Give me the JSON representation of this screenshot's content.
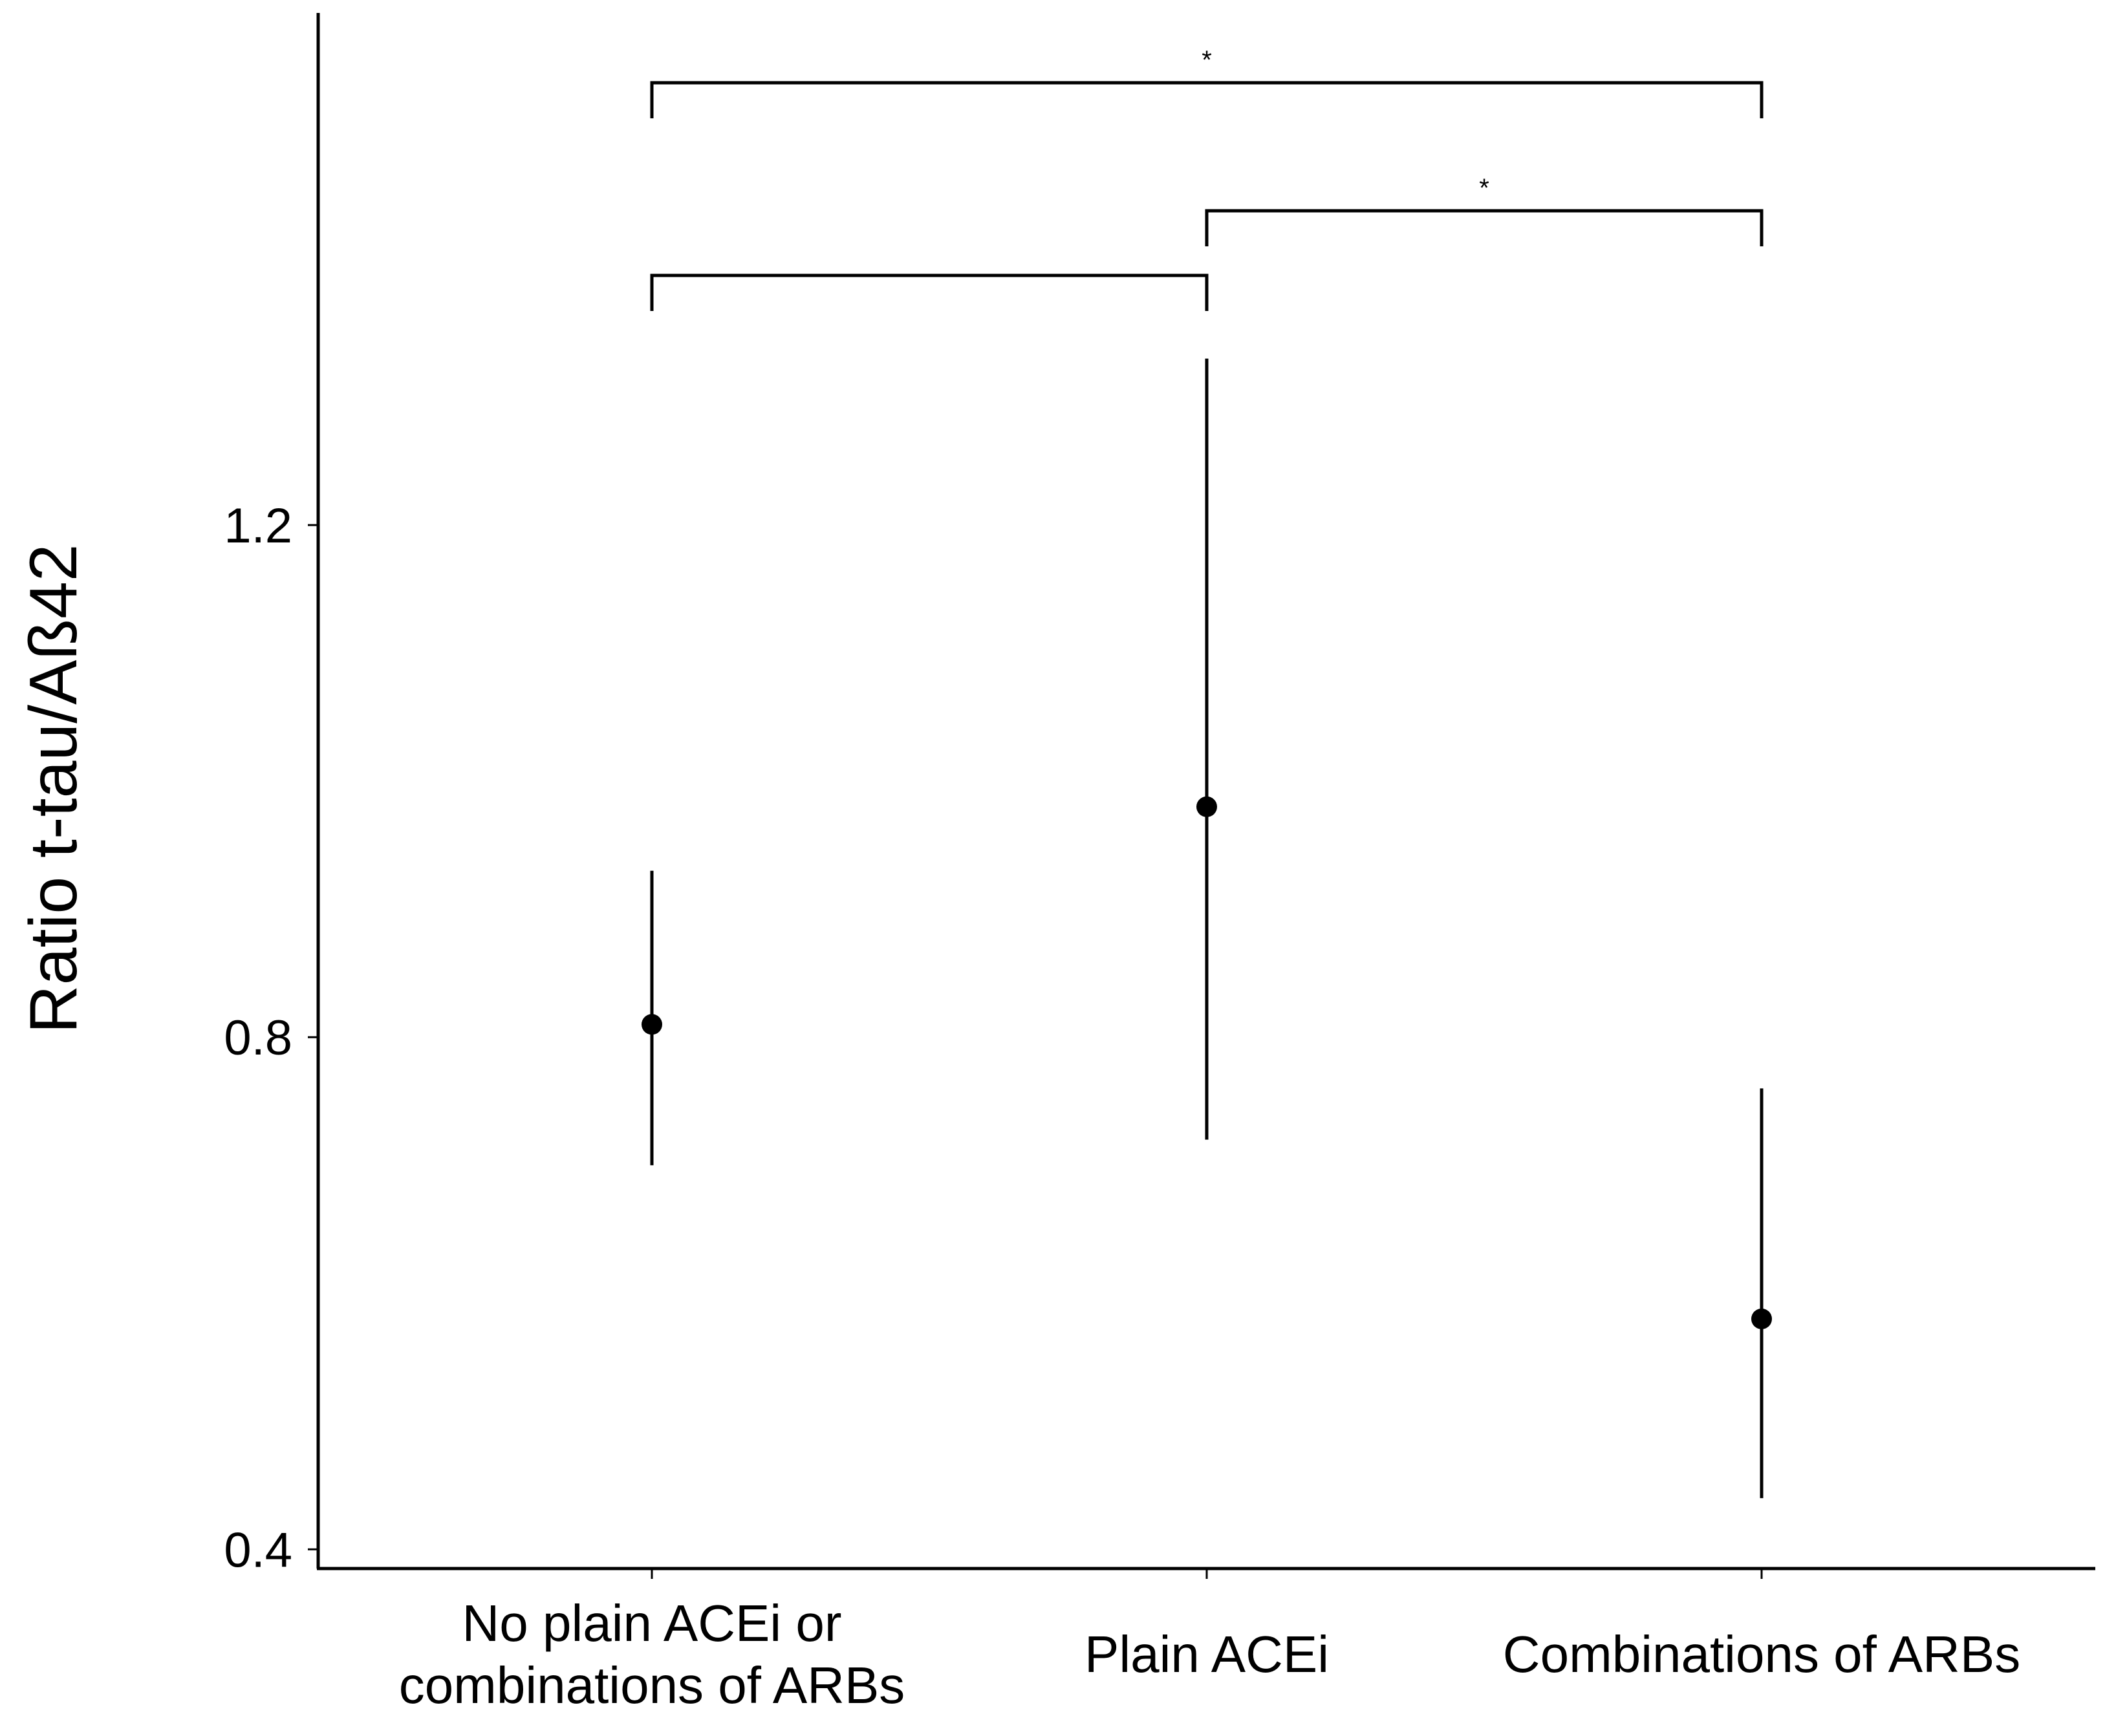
{
  "chart_data": {
    "type": "scatter",
    "subtype": "point-with-error-bars",
    "ylabel": "Ratio t-tau/Aß42",
    "xlabel": "",
    "categories": [
      [
        "No plain ACEi or",
        "combinations of ARBs"
      ],
      [
        "Plain ACEi"
      ],
      [
        "Combinations of ARBs"
      ]
    ],
    "points": [
      {
        "estimate": 0.81,
        "lower": 0.7,
        "upper": 0.93
      },
      {
        "estimate": 0.98,
        "lower": 0.72,
        "upper": 1.33
      },
      {
        "estimate": 0.58,
        "lower": 0.44,
        "upper": 0.76
      }
    ],
    "ylim": [
      0.385,
      1.6
    ],
    "yticks": [
      0.4,
      0.8,
      1.2
    ],
    "ytick_labels": [
      "0.4",
      "0.8",
      "1.2"
    ],
    "grid": false,
    "comparisons": [
      {
        "from": 0,
        "to": 2,
        "level": 3,
        "label": "*"
      },
      {
        "from": 1,
        "to": 2,
        "level": 2,
        "label": "*"
      },
      {
        "from": 0,
        "to": 1,
        "level": 1,
        "label": ""
      }
    ]
  }
}
